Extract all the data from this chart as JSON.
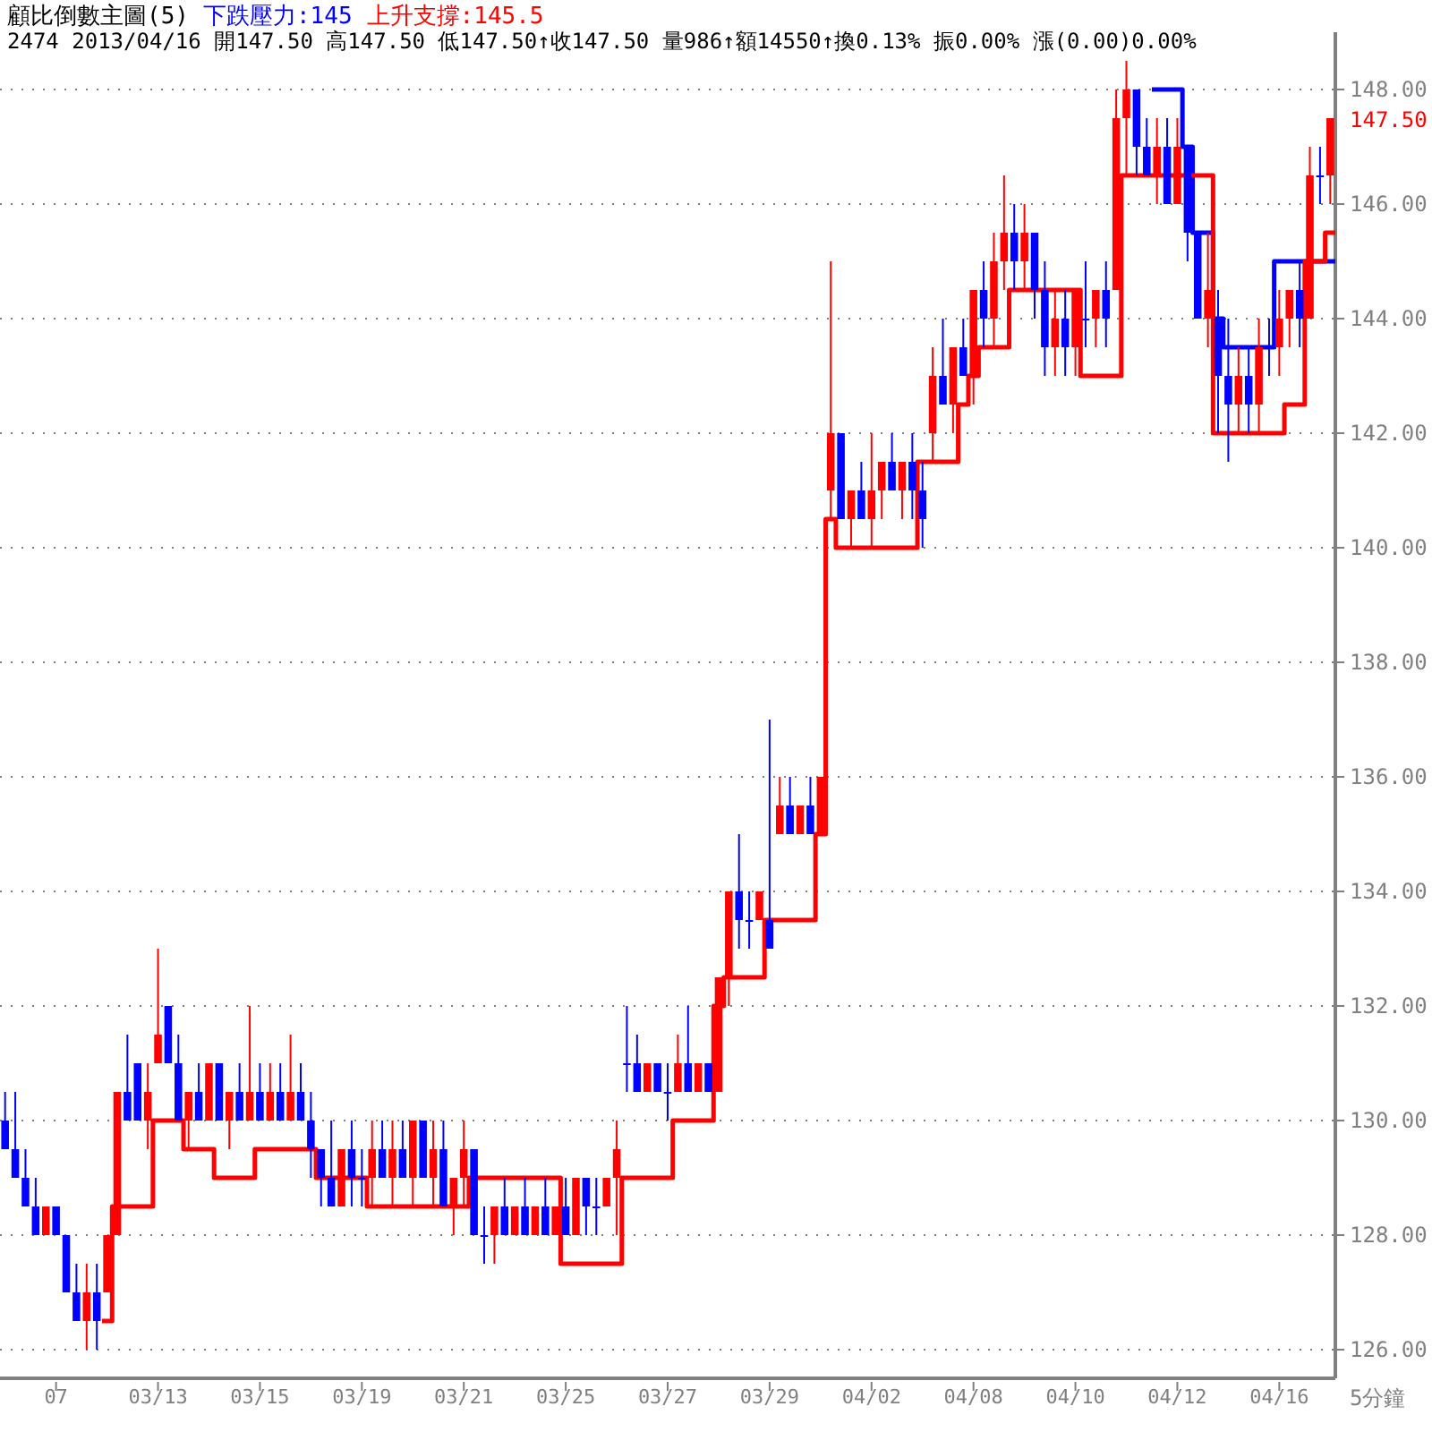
{
  "chart_data": {
    "type": "candlestick",
    "title": "顧比倒數主圖(5)",
    "subtitle": "2474 2013/04/16 開147.50 高147.50 低147.50↑收147.50 量986↑額14550↑換0.13% 振0.00% 漲(0.00)0.00%",
    "annotations": [
      "147.50"
    ],
    "xlabel": "5分鐘",
    "categories": [
      null,
      null,
      null,
      null,
      null,
      "07",
      null,
      null,
      null,
      null,
      null,
      null,
      null,
      null,
      null,
      "03/13",
      null,
      null,
      null,
      null,
      null,
      null,
      null,
      null,
      null,
      "03/15",
      null,
      null,
      null,
      null,
      null,
      null,
      null,
      null,
      null,
      "03/19",
      null,
      null,
      null,
      null,
      null,
      null,
      null,
      null,
      null,
      "03/21",
      null,
      null,
      null,
      null,
      null,
      null,
      null,
      null,
      null,
      "03/25",
      null,
      null,
      null,
      null,
      null,
      null,
      null,
      null,
      null,
      "03/27",
      null,
      null,
      null,
      null,
      null,
      null,
      null,
      null,
      null,
      "03/29",
      null,
      null,
      null,
      null,
      null,
      null,
      null,
      null,
      null,
      "04/02",
      null,
      null,
      null,
      null,
      null,
      null,
      null,
      null,
      null,
      "04/08",
      null,
      null,
      null,
      null,
      null,
      null,
      null,
      null,
      null,
      "04/10",
      null,
      null,
      null,
      null,
      null,
      null,
      null,
      null,
      null,
      "04/12",
      null,
      null,
      null,
      null,
      null,
      null,
      null,
      null,
      null,
      "04/16",
      null,
      null,
      null,
      null,
      null
    ],
    "ohlc": [
      [
        130,
        130.5,
        129.5,
        129.5
      ],
      [
        129.5,
        130.5,
        129,
        129
      ],
      [
        129,
        129.5,
        128.5,
        128.5
      ],
      [
        128.5,
        129,
        128,
        128
      ],
      [
        128,
        128.5,
        128,
        128.5
      ],
      [
        128.5,
        128.5,
        128,
        128
      ],
      [
        128,
        128,
        127,
        127
      ],
      [
        127,
        127.5,
        126.5,
        126.5
      ],
      [
        126.5,
        127.5,
        126,
        127
      ],
      [
        127,
        127.5,
        126,
        126.5
      ],
      [
        127,
        128,
        127,
        128
      ],
      [
        128,
        130.5,
        128,
        130.5
      ],
      [
        130.5,
        131.5,
        130,
        130
      ],
      [
        131,
        131,
        130,
        130
      ],
      [
        130,
        131,
        129.5,
        130.5
      ],
      [
        131,
        133,
        131,
        131.5
      ],
      [
        132,
        132,
        131,
        131
      ],
      [
        131,
        131.5,
        130,
        130
      ],
      [
        130,
        130.5,
        129.5,
        130.5
      ],
      [
        130.5,
        131,
        130,
        130
      ],
      [
        130,
        131,
        130,
        131
      ],
      [
        131,
        131,
        130,
        130
      ],
      [
        130,
        130.5,
        129.5,
        130.5
      ],
      [
        130.5,
        131,
        130,
        130
      ],
      [
        130,
        132,
        130,
        130.5
      ],
      [
        130.5,
        131,
        130,
        130
      ],
      [
        130,
        131,
        130,
        130.5
      ],
      [
        130.5,
        131,
        130,
        130
      ],
      [
        130,
        131.5,
        130,
        130.5
      ],
      [
        130.5,
        131,
        130,
        130
      ],
      [
        130,
        130.5,
        129,
        129.5
      ],
      [
        129.5,
        129.5,
        128.5,
        129
      ],
      [
        129,
        130,
        128.5,
        128.5
      ],
      [
        128.5,
        129.5,
        128.5,
        129.5
      ],
      [
        129.5,
        130,
        128.5,
        129
      ],
      [
        129,
        129.5,
        128.5,
        129
      ],
      [
        129,
        130,
        128.5,
        129.5
      ],
      [
        129.5,
        130,
        129,
        129
      ],
      [
        129,
        130,
        128.5,
        129.5
      ],
      [
        129.5,
        130,
        129,
        129
      ],
      [
        129,
        130,
        128.5,
        130
      ],
      [
        130,
        130,
        129,
        129
      ],
      [
        129,
        130,
        128.5,
        129.5
      ],
      [
        129.5,
        130,
        128.5,
        128.5
      ],
      [
        128.5,
        129,
        128,
        129
      ],
      [
        129,
        130,
        128.5,
        129.5
      ],
      [
        129.5,
        129.5,
        128,
        128
      ],
      [
        128,
        128.5,
        127.5,
        128
      ],
      [
        128,
        128.5,
        127.5,
        128.5
      ],
      [
        128.5,
        129,
        128,
        128
      ],
      [
        128,
        128.5,
        128,
        128.5
      ],
      [
        128.5,
        129,
        128,
        128
      ],
      [
        128,
        128.5,
        128,
        128.5
      ],
      [
        128.5,
        129,
        128,
        128
      ],
      [
        128,
        128.5,
        128,
        128.5
      ],
      [
        128.5,
        129,
        128,
        128
      ],
      [
        128,
        129,
        128,
        129
      ],
      [
        129,
        129,
        128,
        128.5
      ],
      [
        128.5,
        129,
        128,
        128.5
      ],
      [
        128.5,
        129,
        128.5,
        129
      ],
      [
        129,
        130,
        128,
        129.5
      ],
      [
        131,
        132,
        130.5,
        131
      ],
      [
        131,
        131.5,
        130.5,
        130.5
      ],
      [
        130.5,
        131,
        130.5,
        131
      ],
      [
        131,
        131,
        130.5,
        130.5
      ],
      [
        130.5,
        131,
        130,
        130.5
      ],
      [
        130.5,
        131.5,
        130.5,
        131
      ],
      [
        131,
        132,
        130.5,
        130.5
      ],
      [
        130.5,
        131,
        130.5,
        131
      ],
      [
        131,
        131,
        130.5,
        130.5
      ],
      [
        130.5,
        132.5,
        130.5,
        132.5
      ],
      [
        132.5,
        134,
        132,
        134
      ],
      [
        134,
        135,
        133,
        133.5
      ],
      [
        133.5,
        134,
        133,
        133.5
      ],
      [
        133.5,
        134,
        133.5,
        134
      ],
      [
        133.5,
        137,
        133,
        133
      ],
      [
        135,
        136,
        135,
        135.5
      ],
      [
        135.5,
        136,
        135,
        135
      ],
      [
        135,
        135.5,
        135,
        135.5
      ],
      [
        135.5,
        136,
        135,
        135
      ],
      [
        135,
        136,
        135,
        136
      ],
      [
        141,
        145,
        140.5,
        142
      ],
      [
        142,
        142,
        140.5,
        140.5
      ],
      [
        140.5,
        141,
        140,
        141
      ],
      [
        141,
        141.5,
        140.5,
        140.5
      ],
      [
        140.5,
        142,
        140,
        141
      ],
      [
        141,
        141.5,
        140.5,
        141.5
      ],
      [
        141.5,
        142,
        141,
        141
      ],
      [
        141,
        141.5,
        140.5,
        141.5
      ],
      [
        141.5,
        142,
        140.5,
        141
      ],
      [
        141,
        141.5,
        140,
        140.5
      ],
      [
        142,
        143.5,
        141.5,
        143
      ],
      [
        143,
        144,
        142.5,
        142.5
      ],
      [
        142.5,
        143.5,
        142,
        143.5
      ],
      [
        143.5,
        144,
        143,
        143
      ],
      [
        143,
        144.5,
        142.5,
        144.5
      ],
      [
        144.5,
        145,
        143.5,
        144
      ],
      [
        144,
        145.5,
        143.5,
        145
      ],
      [
        145,
        146.5,
        144.5,
        145.5
      ],
      [
        145.5,
        146,
        144.5,
        145
      ],
      [
        145,
        146,
        144.5,
        145.5
      ],
      [
        145.5,
        145.5,
        144,
        144.5
      ],
      [
        144.5,
        145,
        143,
        143.5
      ],
      [
        143.5,
        144.5,
        143,
        144
      ],
      [
        144,
        144.5,
        143,
        143.5
      ],
      [
        143.5,
        144.5,
        143,
        144.5
      ],
      [
        144,
        145,
        143.5,
        144
      ],
      [
        144,
        144.5,
        143.5,
        144.5
      ],
      [
        144.5,
        145,
        143.5,
        144
      ],
      [
        144.5,
        148,
        144.5,
        147.5
      ],
      [
        147.5,
        148.5,
        146.5,
        148
      ],
      [
        148,
        148,
        146.5,
        147
      ],
      [
        147,
        147.5,
        146.5,
        146.5
      ],
      [
        146.5,
        147.5,
        146,
        147
      ],
      [
        147,
        147.5,
        146,
        146
      ],
      [
        146,
        147.5,
        146,
        147
      ],
      [
        147,
        147,
        145,
        145.5
      ],
      [
        145.5,
        145.5,
        144,
        144
      ],
      [
        144,
        145.5,
        143.5,
        144.5
      ],
      [
        144,
        144.5,
        142,
        143
      ],
      [
        143,
        144,
        141.5,
        142.5
      ],
      [
        142.5,
        143.5,
        142,
        143
      ],
      [
        143,
        143.5,
        142,
        142.5
      ],
      [
        142.5,
        144,
        142,
        143.5
      ],
      [
        143.5,
        144,
        143,
        143.5
      ],
      [
        143.5,
        144.5,
        143,
        144
      ],
      [
        144,
        144.5,
        143.5,
        144.5
      ],
      [
        144.5,
        145,
        143.5,
        144
      ],
      [
        144,
        147,
        144,
        146.5
      ],
      [
        146.5,
        147,
        146,
        146.5
      ],
      [
        146.5,
        147.5,
        146,
        147.5
      ]
    ],
    "colors": [
      "#0000ff",
      "#0000ff",
      "#0000ff",
      "#0000ff",
      "#ff0000",
      "#0000ff",
      "#0000ff",
      "#0000ff",
      "#ff0000",
      "#0000ff",
      "#ff0000",
      "#ff0000",
      "#0000ff",
      "#0000ff",
      "#ff0000",
      "#ff0000",
      "#0000ff",
      "#0000ff",
      "#ff0000",
      "#0000ff",
      "#ff0000",
      "#0000ff",
      "#ff0000",
      "#0000ff",
      "#ff0000",
      "#0000ff",
      "#ff0000",
      "#0000ff",
      "#ff0000",
      "#0000ff",
      "#0000ff",
      "#0000ff",
      "#0000ff",
      "#ff0000",
      "#0000ff",
      "#0000ff",
      "#ff0000",
      "#0000ff",
      "#ff0000",
      "#0000ff",
      "#ff0000",
      "#0000ff",
      "#ff0000",
      "#0000ff",
      "#ff0000",
      "#ff0000",
      "#0000ff",
      "#0000ff",
      "#ff0000",
      "#0000ff",
      "#ff0000",
      "#0000ff",
      "#ff0000",
      "#0000ff",
      "#ff0000",
      "#0000ff",
      "#ff0000",
      "#0000ff",
      "#0000ff",
      "#ff0000",
      "#ff0000",
      "#0000ff",
      "#0000ff",
      "#ff0000",
      "#0000ff",
      "#0000ff",
      "#ff0000",
      "#0000ff",
      "#ff0000",
      "#0000ff",
      "#ff0000",
      "#ff0000",
      "#0000ff",
      "#0000ff",
      "#ff0000",
      "#0000ff",
      "#ff0000",
      "#0000ff",
      "#ff0000",
      "#0000ff",
      "#ff0000",
      "#ff0000",
      "#0000ff",
      "#ff0000",
      "#0000ff",
      "#ff0000",
      "#ff0000",
      "#0000ff",
      "#ff0000",
      "#0000ff",
      "#0000ff",
      "#ff0000",
      "#0000ff",
      "#ff0000",
      "#0000ff",
      "#ff0000",
      "#0000ff",
      "#ff0000",
      "#ff0000",
      "#0000ff",
      "#ff0000",
      "#0000ff",
      "#0000ff",
      "#ff0000",
      "#0000ff",
      "#ff0000",
      "#0000ff",
      "#ff0000",
      "#0000ff",
      "#ff0000",
      "#ff0000",
      "#0000ff",
      "#0000ff",
      "#ff0000",
      "#0000ff",
      "#ff0000",
      "#0000ff",
      "#0000ff",
      "#ff0000",
      "#0000ff",
      "#0000ff",
      "#ff0000",
      "#0000ff",
      "#ff0000",
      "#0000ff",
      "#ff0000",
      "#ff0000",
      "#0000ff",
      "#ff0000",
      "#0000ff",
      "#ff0000"
    ],
    "series": [
      {
        "name": "下跌壓力:145",
        "type": "step",
        "color": "#0000ff",
        "values": [
          null,
          null,
          null,
          null,
          null,
          null,
          null,
          null,
          null,
          null,
          null,
          null,
          null,
          null,
          null,
          null,
          null,
          null,
          null,
          null,
          null,
          null,
          null,
          null,
          null,
          null,
          null,
          null,
          null,
          null,
          null,
          null,
          null,
          null,
          null,
          null,
          null,
          null,
          null,
          null,
          null,
          null,
          null,
          null,
          null,
          null,
          null,
          null,
          null,
          null,
          null,
          null,
          null,
          null,
          null,
          null,
          null,
          null,
          null,
          null,
          null,
          null,
          null,
          null,
          null,
          null,
          null,
          null,
          null,
          null,
          null,
          null,
          null,
          null,
          null,
          null,
          null,
          null,
          null,
          null,
          null,
          null,
          null,
          null,
          null,
          null,
          null,
          null,
          null,
          null,
          null,
          null,
          null,
          null,
          null,
          null,
          null,
          null,
          null,
          null,
          null,
          null,
          null,
          null,
          null,
          null,
          null,
          null,
          null,
          null,
          null,
          null,
          null,
          148,
          148,
          148,
          147,
          145.5,
          145.5,
          144,
          143.5,
          143.5,
          143.5,
          143.5,
          143.5,
          145,
          145,
          145,
          145,
          145,
          145
        ]
      },
      {
        "name": "上升支撐:145.5",
        "type": "step",
        "color": "#ff0000",
        "values": [
          null,
          null,
          null,
          null,
          null,
          null,
          null,
          null,
          null,
          null,
          126.5,
          128.5,
          128.5,
          128.5,
          128.5,
          130,
          130,
          130,
          129.5,
          129.5,
          129.5,
          129,
          129,
          129,
          129,
          129.5,
          129.5,
          129.5,
          129.5,
          129.5,
          129.5,
          129,
          129,
          129,
          129,
          129,
          128.5,
          128.5,
          128.5,
          128.5,
          128.5,
          128.5,
          128.5,
          128.5,
          128.5,
          128.5,
          129,
          129,
          129,
          129,
          129,
          129,
          129,
          129,
          129,
          127.5,
          127.5,
          127.5,
          127.5,
          127.5,
          127.5,
          129,
          129,
          129,
          129,
          129,
          130,
          130,
          130,
          130,
          132,
          132.5,
          132.5,
          132.5,
          132.5,
          133.5,
          133.5,
          133.5,
          133.5,
          133.5,
          135,
          140.5,
          140,
          140,
          140,
          140,
          140,
          140,
          140,
          140,
          141.5,
          141.5,
          141.5,
          141.5,
          142.5,
          143,
          143.5,
          143.5,
          143.5,
          144.5,
          144.5,
          144.5,
          144.5,
          144.5,
          144.5,
          144.5,
          143,
          143,
          143,
          143,
          146.5,
          146.5,
          146.5,
          146.5,
          146.5,
          146.5,
          146.5,
          146.5,
          146.5,
          142,
          142,
          142,
          142,
          142,
          142,
          142,
          142.5,
          142.5,
          145,
          145,
          145.5
        ]
      }
    ],
    "ylim": [
      125.5,
      149
    ],
    "yticks": [
      {
        "value": 126,
        "label": "126.00"
      },
      {
        "value": 128,
        "label": "128.00"
      },
      {
        "value": 130,
        "label": "130.00"
      },
      {
        "value": 132,
        "label": "132.00"
      },
      {
        "value": 134,
        "label": "134.00"
      },
      {
        "value": 136,
        "label": "136.00"
      },
      {
        "value": 138,
        "label": "138.00"
      },
      {
        "value": 140,
        "label": "140.00"
      },
      {
        "value": 142,
        "label": "142.00"
      },
      {
        "value": 144,
        "label": "144.00"
      },
      {
        "value": 146,
        "label": "146.00"
      },
      {
        "value": 148,
        "label": "148.00"
      }
    ],
    "grid": "y",
    "legend": "top left"
  }
}
